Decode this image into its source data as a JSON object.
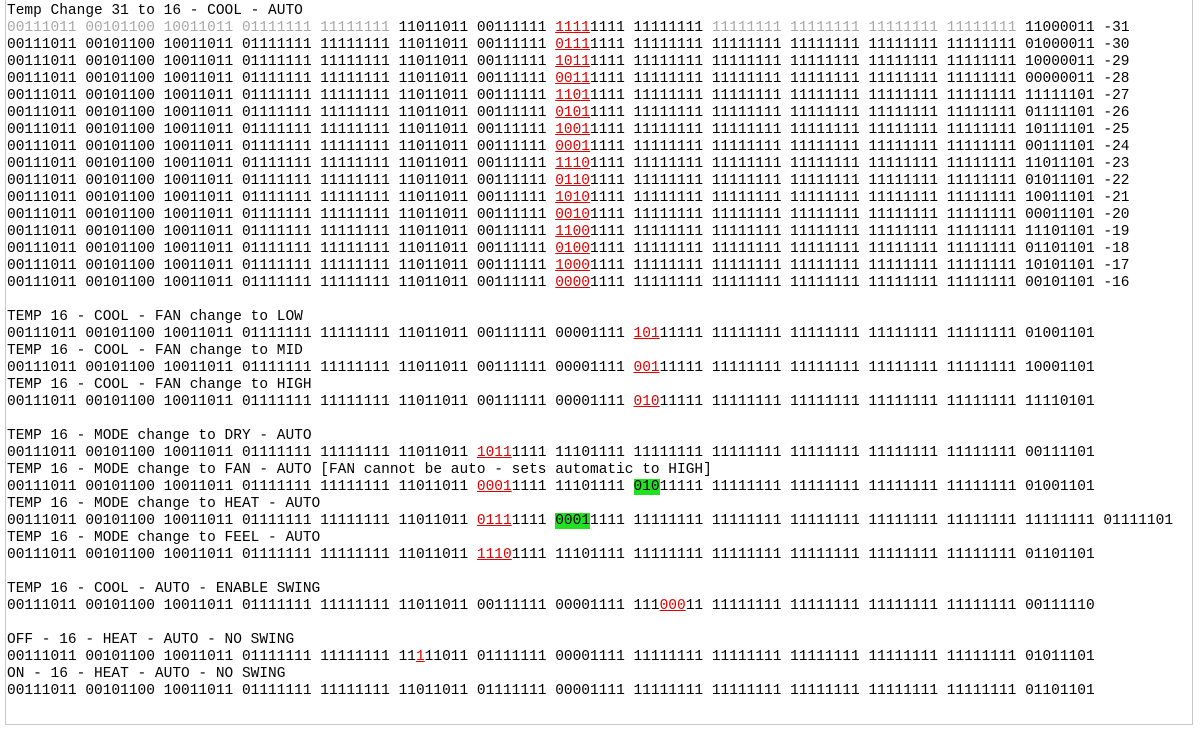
{
  "blocks": [
    {
      "lines": [
        [
          "Temp Change 31 to 16 - COOL - AUTO"
        ],
        [
          {
            "text": "00111011 00101100 10011011 01111111 11111111",
            "mark": "gray"
          },
          " 11011011 00111111 ",
          {
            "text": "1111",
            "mark": "red"
          },
          "1111 11111111 ",
          {
            "text": "11111111 11111111 11111111 11111111",
            "mark": "gray"
          },
          " 11000011 -31"
        ],
        [
          "00111011 00101100 10011011 01111111 11111111 11011011 00111111 ",
          {
            "text": "0111",
            "mark": "red"
          },
          "1111 11111111 11111111 11111111 11111111 11111111 01000011 -30"
        ],
        [
          "00111011 00101100 10011011 01111111 11111111 11011011 00111111 ",
          {
            "text": "1011",
            "mark": "red"
          },
          "1111 11111111 11111111 11111111 11111111 11111111 10000011 -29"
        ],
        [
          "00111011 00101100 10011011 01111111 11111111 11011011 00111111 ",
          {
            "text": "0011",
            "mark": "red"
          },
          "1111 11111111 11111111 11111111 11111111 11111111 00000011 -28"
        ],
        [
          "00111011 00101100 10011011 01111111 11111111 11011011 00111111 ",
          {
            "text": "1101",
            "mark": "red"
          },
          "1111 11111111 11111111 11111111 11111111 11111111 11111101 -27"
        ],
        [
          "00111011 00101100 10011011 01111111 11111111 11011011 00111111 ",
          {
            "text": "0101",
            "mark": "red"
          },
          "1111 11111111 11111111 11111111 11111111 11111111 01111101 -26"
        ],
        [
          "00111011 00101100 10011011 01111111 11111111 11011011 00111111 ",
          {
            "text": "1001",
            "mark": "red"
          },
          "1111 11111111 11111111 11111111 11111111 11111111 10111101 -25"
        ],
        [
          "00111011 00101100 10011011 01111111 11111111 11011011 00111111 ",
          {
            "text": "0001",
            "mark": "red"
          },
          "1111 11111111 11111111 11111111 11111111 11111111 00111101 -24"
        ],
        [
          "00111011 00101100 10011011 01111111 11111111 11011011 00111111 ",
          {
            "text": "1110",
            "mark": "red"
          },
          "1111 11111111 11111111 11111111 11111111 11111111 11011101 -23"
        ],
        [
          "00111011 00101100 10011011 01111111 11111111 11011011 00111111 ",
          {
            "text": "0110",
            "mark": "red"
          },
          "1111 11111111 11111111 11111111 11111111 11111111 01011101 -22"
        ],
        [
          "00111011 00101100 10011011 01111111 11111111 11011011 00111111 ",
          {
            "text": "1010",
            "mark": "red"
          },
          "1111 11111111 11111111 11111111 11111111 11111111 10011101 -21"
        ],
        [
          "00111011 00101100 10011011 01111111 11111111 11011011 00111111 ",
          {
            "text": "0010",
            "mark": "red"
          },
          "1111 11111111 11111111 11111111 11111111 11111111 00011101 -20"
        ],
        [
          "00111011 00101100 10011011 01111111 11111111 11011011 00111111 ",
          {
            "text": "1100",
            "mark": "red"
          },
          "1111 11111111 11111111 11111111 11111111 11111111 11101101 -19"
        ],
        [
          "00111011 00101100 10011011 01111111 11111111 11011011 00111111 ",
          {
            "text": "0100",
            "mark": "red"
          },
          "1111 11111111 11111111 11111111 11111111 11111111 01101101 -18"
        ],
        [
          "00111011 00101100 10011011 01111111 11111111 11011011 00111111 ",
          {
            "text": "1000",
            "mark": "red"
          },
          "1111 11111111 11111111 11111111 11111111 11111111 10101101 -17"
        ],
        [
          "00111011 00101100 10011011 01111111 11111111 11011011 00111111 ",
          {
            "text": "0000",
            "mark": "red"
          },
          "1111 11111111 11111111 11111111 11111111 11111111 00101101 -16"
        ]
      ]
    },
    {
      "lines": [
        [
          "TEMP 16 - COOL - FAN change to LOW"
        ],
        [
          "00111011 00101100 10011011 01111111 11111111 11011011 00111111 00001111 ",
          {
            "text": "101",
            "mark": "red"
          },
          "11111 11111111 11111111 11111111 11111111 01001101"
        ],
        [
          "TEMP 16 - COOL - FAN change to MID"
        ],
        [
          "00111011 00101100 10011011 01111111 11111111 11011011 00111111 00001111 ",
          {
            "text": "001",
            "mark": "red"
          },
          "11111 11111111 11111111 11111111 11111111 10001101"
        ],
        [
          "TEMP 16 - COOL - FAN change to HIGH"
        ],
        [
          "00111011 00101100 10011011 01111111 11111111 11011011 00111111 00001111 ",
          {
            "text": "010",
            "mark": "red"
          },
          "11111 11111111 11111111 11111111 11111111 11110101"
        ]
      ]
    },
    {
      "lines": [
        [
          "TEMP 16 - MODE change to DRY - AUTO"
        ],
        [
          "00111011 00101100 10011011 01111111 11111111 11011011 ",
          {
            "text": "1011",
            "mark": "red"
          },
          "1111 11101111 11111111 11111111 11111111 11111111 11111111 00111101"
        ],
        [
          "TEMP 16 - MODE change to FAN - AUTO [FAN cannot be auto - sets automatic to HIGH]"
        ],
        [
          "00111011 00101100 10011011 01111111 11111111 11011011 ",
          {
            "text": "0001",
            "mark": "red"
          },
          "1111 11101111 ",
          {
            "text": "010",
            "mark": "green"
          },
          "11111 11111111 11111111 11111111 11111111 01001101"
        ],
        [
          "TEMP 16 - MODE change to HEAT - AUTO"
        ],
        [
          "00111011 00101100 10011011 01111111 11111111 11011011 ",
          {
            "text": "0111",
            "mark": "red"
          },
          "1111 ",
          {
            "text": "0001",
            "mark": "green"
          },
          "1111 11111111 11111111 11111111 11111111 11111111 11111111 01111101"
        ],
        [
          "TEMP 16 - MODE change to FEEL - AUTO"
        ],
        [
          "00111011 00101100 10011011 01111111 11111111 11011011 ",
          {
            "text": "1110",
            "mark": "red"
          },
          "1111 11101111 11111111 11111111 11111111 11111111 11111111 01101101"
        ]
      ]
    },
    {
      "lines": [
        [
          "TEMP 16 - COOL - AUTO - ENABLE SWING"
        ],
        [
          "00111011 00101100 10011011 01111111 11111111 11011011 00111111 00001111 111",
          {
            "text": "000",
            "mark": "red"
          },
          "11 11111111 11111111 11111111 11111111 00111110"
        ]
      ]
    },
    {
      "lines": [
        [
          "OFF - 16 - HEAT - AUTO - NO SWING"
        ],
        [
          "00111011 00101100 10011011 01111111 11111111 11",
          {
            "text": "1",
            "mark": "red"
          },
          "11011 01111111 00001111 11111111 11111111 11111111 11111111 11111111 01011101"
        ],
        [
          "ON - 16 - HEAT - AUTO - NO SWING"
        ],
        [
          "00111011 00101100 10011011 01111111 11111111 11011011 01111111 00001111 11111111 11111111 11111111 11111111 11111111 01101101"
        ]
      ]
    }
  ]
}
